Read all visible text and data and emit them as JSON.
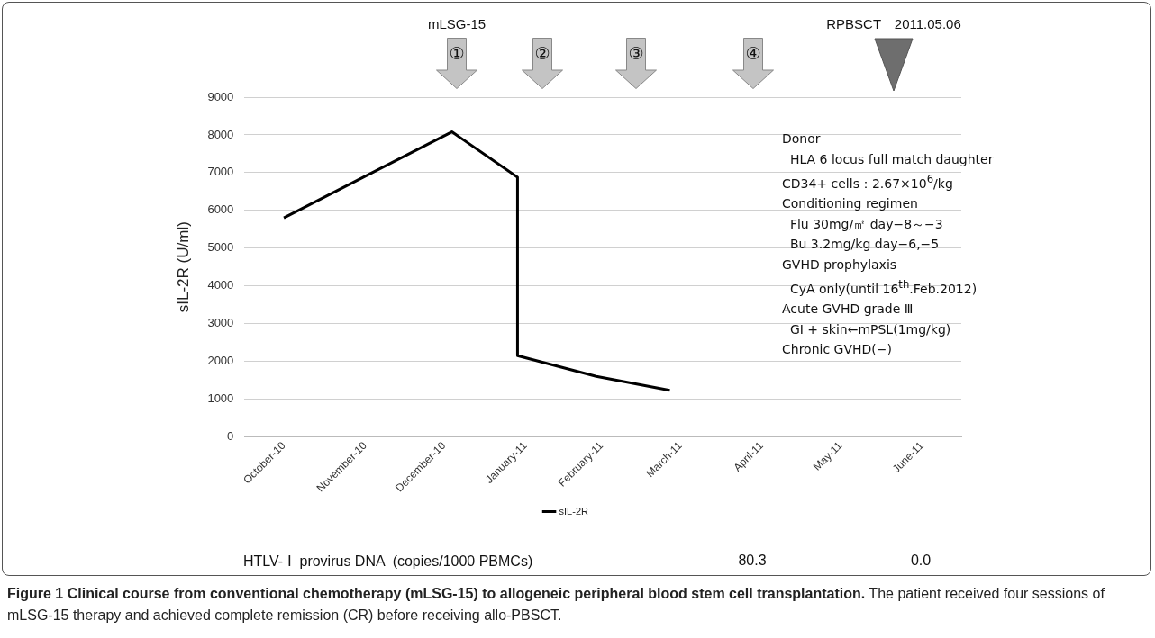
{
  "chart_data": {
    "type": "line",
    "title": "Figure 1 Clinical course from conventional chemotherapy (mLSG-15) to allogeneic peripheral blood stem cell transplantation.",
    "subtitle": "The patient received four sessions of mLSG-15 therapy and achieved complete remission (CR) before receiving allo-PBSCT.",
    "ylabel": "sIL-2R (U/ml)",
    "x": [
      "2010-10-16",
      "2010-12-19",
      "2011-01-13",
      "2011-01-13",
      "2011-02-12",
      "2011-03-12"
    ],
    "series": [
      {
        "name": "sIL-2R",
        "color": "#000000",
        "values": [
          5800,
          8080,
          6880,
          2150,
          1600,
          1230
        ]
      }
    ],
    "xlim": [
      "2010-10-01",
      "2011-07-01"
    ],
    "xticks": [
      {
        "value": "2010-10-16",
        "label": "October-10"
      },
      {
        "value": "2010-11-16",
        "label": "November-10"
      },
      {
        "value": "2010-12-16",
        "label": "December-10"
      },
      {
        "value": "2011-01-16",
        "label": "January-11"
      },
      {
        "value": "2011-02-14",
        "label": "February-11"
      },
      {
        "value": "2011-03-16",
        "label": "March-11"
      },
      {
        "value": "2011-04-16",
        "label": "April-11"
      },
      {
        "value": "2011-05-16",
        "label": "May-11"
      },
      {
        "value": "2011-06-16",
        "label": "June-11"
      }
    ],
    "ylim": [
      0,
      9000
    ],
    "yticks": [
      0,
      1000,
      2000,
      3000,
      4000,
      5000,
      6000,
      7000,
      8000,
      9000
    ],
    "grid": "y",
    "legend": "bottom",
    "marker": "none",
    "line_style": "solid",
    "annotations": [
      "mLSG-15",
      "①",
      "②",
      "③",
      "④",
      "RPBSCT　2011.05.06",
      "80.3",
      "0.0",
      "Donor",
      "  HLA 6 locus full match daughter",
      "CD34+ cells：2.67×10$^{6}$/kg",
      "Conditioning regimen",
      "  Flu 30mg/㎡ day−8～−3",
      "  Bu 3.2mg/kg day−6,−5",
      "GVHD prophylaxis",
      "  CyA only(until 16$^{th}$.Feb.2012)",
      "Acute GVHD grade Ⅲ",
      "  GI + skin←mPSL(1mg/kg)",
      "Chronic GVHD(−)",
      "HTLV- Ⅰ  provirus DNA  (copies/1000 PBMCs)"
    ]
  }
}
